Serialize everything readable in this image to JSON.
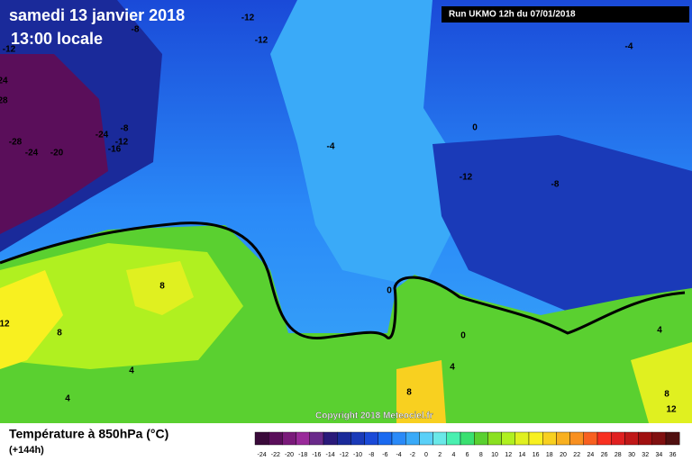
{
  "header": {
    "date": "samedi 13 janvier 2018",
    "time": "13:00 locale",
    "run": "Run UKMO 12h du 07/01/2018"
  },
  "map": {
    "contour_labels": [
      -12,
      -8,
      -12,
      -12,
      24,
      28,
      -8,
      -24,
      -12,
      -16,
      -28,
      -24,
      -20,
      -4,
      -4,
      0,
      -12,
      -8,
      8,
      12,
      8,
      0,
      0,
      4,
      4,
      4,
      8,
      4,
      8,
      12
    ],
    "copyright": "Copyright 2018 Meteociel.fr"
  },
  "footer": {
    "title": "Température à 850hPa (°C)",
    "lead": "(+144h)"
  },
  "colorbar": {
    "ticks": [
      -24,
      -22,
      -20,
      -18,
      -16,
      -14,
      -12,
      -10,
      -8,
      -6,
      -4,
      -2,
      0,
      2,
      4,
      6,
      8,
      10,
      12,
      14,
      16,
      18,
      20,
      22,
      24,
      26,
      28,
      30,
      32,
      34,
      36
    ],
    "colors": [
      "#3a0a3a",
      "#5a0e5a",
      "#7a1a7a",
      "#9a2a9a",
      "#6a2a8a",
      "#2a1a7a",
      "#1a2a9a",
      "#1a3ab8",
      "#1a4ad8",
      "#1a6af0",
      "#2a8af8",
      "#3aaaf8",
      "#5ad0f8",
      "#6ae8e8",
      "#4af0b0",
      "#3ae070",
      "#5ad030",
      "#8ae020",
      "#b0f020",
      "#e0f020",
      "#f8f020",
      "#f8d020",
      "#f8b020",
      "#f89020",
      "#f86020",
      "#f83020",
      "#e02020",
      "#c01818",
      "#a01010",
      "#801010",
      "#501010"
    ]
  }
}
